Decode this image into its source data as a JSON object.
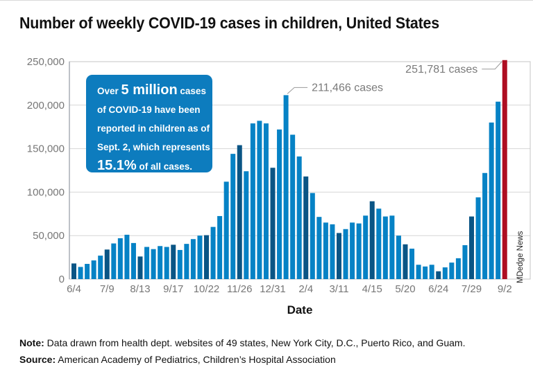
{
  "title": "Number of weekly COVID-19 cases in children, United States",
  "credit": "MDedge News",
  "callout": {
    "line1": {
      "pre": "Over ",
      "big": "5 million",
      "post": " cases"
    },
    "line2": "of COVID-19 have been",
    "line3": "reported in children as of",
    "line4": "Sept. 2, which represents",
    "line5": {
      "big": "15.1%",
      "post": " of all cases."
    }
  },
  "note": {
    "label": "Note:",
    "text": " Data drawn from health dept. websites of 49 states, New York City, D.C., Puerto Rico, and Guam."
  },
  "source": {
    "label": "Source:",
    "text": " American Academy of Pediatrics, Children’s Hospital Association"
  },
  "colors": {
    "weekly_bar": "#0682c5",
    "tick_week_bar": "#0a5585",
    "final_bar": "#ae0e22",
    "callout_bg": "#0d7cbe",
    "annotation_text": "#7a7a7a",
    "axis_text": "#767676",
    "grid_line": "#d6d6d6",
    "plot_border": "#c4c4c4",
    "leader_line": "#9a9a9a"
  },
  "chart_data": {
    "type": "bar",
    "title": "Number of weekly COVID-19 cases in children, United States",
    "xlabel": "Date",
    "ylabel": "",
    "ylim": [
      0,
      250000
    ],
    "ytick_step": 50000,
    "grid": true,
    "tick_every": 5,
    "x": [
      "6/4",
      "6/11",
      "6/18",
      "6/25",
      "7/2",
      "7/9",
      "7/16",
      "7/23",
      "7/30",
      "8/6",
      "8/13",
      "8/20",
      "8/27",
      "9/3",
      "9/10",
      "9/17",
      "9/24",
      "10/1",
      "10/8",
      "10/15",
      "10/22",
      "10/29",
      "11/5",
      "11/12",
      "11/19",
      "11/26",
      "12/3",
      "12/10",
      "12/17",
      "12/24",
      "12/31",
      "1/7",
      "1/14",
      "1/21",
      "1/28",
      "2/4",
      "2/11",
      "2/18",
      "2/25",
      "3/4",
      "3/11",
      "3/18",
      "3/25",
      "4/1",
      "4/8",
      "4/15",
      "4/22",
      "4/29",
      "5/6",
      "5/13",
      "5/20",
      "5/27",
      "6/3",
      "6/10",
      "6/17",
      "6/24",
      "7/1",
      "7/8",
      "7/15",
      "7/22",
      "7/29",
      "8/5",
      "8/12",
      "8/19",
      "8/26",
      "9/2"
    ],
    "values": [
      18000,
      14000,
      17500,
      21500,
      27000,
      34000,
      41000,
      47000,
      51000,
      41500,
      26000,
      37000,
      34500,
      38000,
      37000,
      39500,
      33500,
      40500,
      46000,
      50000,
      50500,
      60000,
      72500,
      112000,
      144000,
      154000,
      124000,
      179000,
      182000,
      179000,
      128000,
      172000,
      211466,
      166000,
      141000,
      118000,
      99000,
      71500,
      65000,
      63000,
      53000,
      57500,
      65000,
      64000,
      73000,
      89500,
      81000,
      72000,
      73000,
      50000,
      40000,
      35000,
      16500,
      14500,
      16500,
      9000,
      13500,
      19000,
      24000,
      39000,
      72000,
      94000,
      122000,
      180000,
      204000,
      251781
    ],
    "annotations": [
      {
        "label": "211,466 cases",
        "bar_index": 32,
        "value": 211466,
        "side": "right"
      },
      {
        "label": "251,781 cases",
        "bar_index": 65,
        "value": 251781,
        "side": "left"
      }
    ],
    "legend": null
  }
}
